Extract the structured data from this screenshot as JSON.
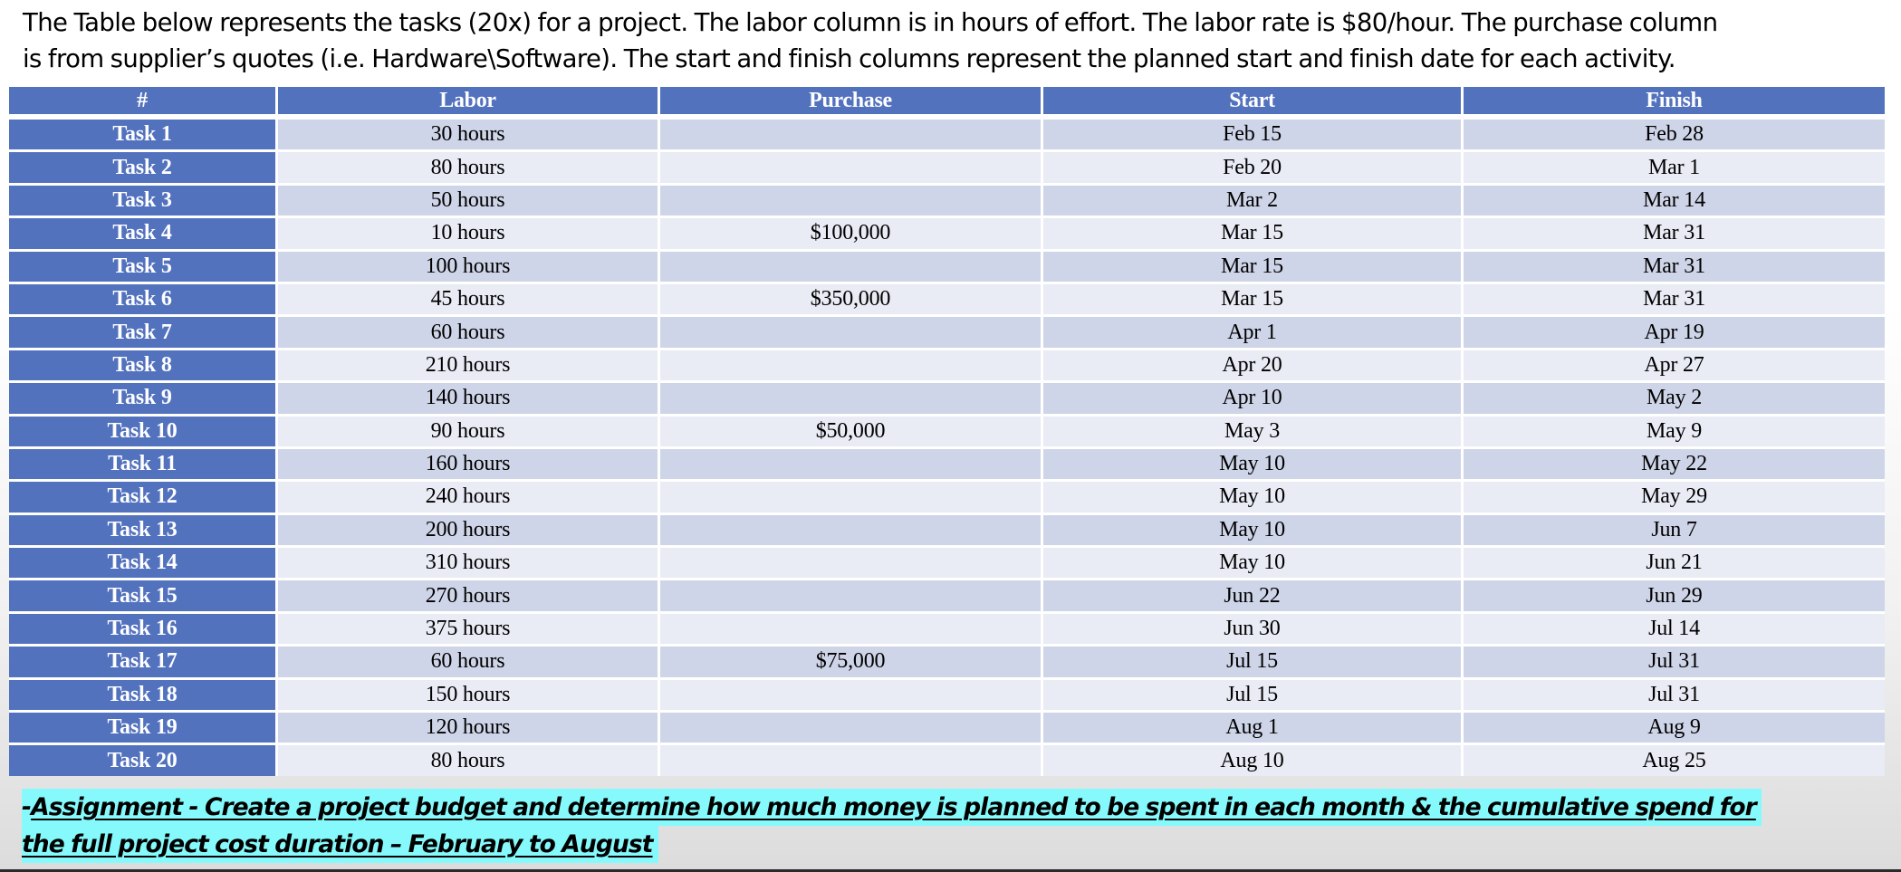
{
  "intro": {
    "line1": "The Table below represents the tasks (20x) for a project. The labor column is in hours of effort. The labor rate is $80/hour. The purchase column",
    "line2": "is from supplier’s quotes (i.e. Hardware\\Software). The start and finish columns represent the planned start and finish date for each activity."
  },
  "table": {
    "headers": [
      "#",
      "Labor",
      "Purchase",
      "Start",
      "Finish"
    ],
    "rows": [
      {
        "task": "Task 1",
        "labor": "30 hours",
        "purchase": "",
        "start": "Feb 15",
        "finish": "Feb 28"
      },
      {
        "task": "Task 2",
        "labor": "80 hours",
        "purchase": "",
        "start": "Feb 20",
        "finish": "Mar 1"
      },
      {
        "task": "Task 3",
        "labor": "50 hours",
        "purchase": "",
        "start": "Mar 2",
        "finish": "Mar 14"
      },
      {
        "task": "Task 4",
        "labor": "10 hours",
        "purchase": "$100,000",
        "start": "Mar 15",
        "finish": "Mar 31"
      },
      {
        "task": "Task 5",
        "labor": "100 hours",
        "purchase": "",
        "start": "Mar 15",
        "finish": "Mar 31"
      },
      {
        "task": "Task 6",
        "labor": "45 hours",
        "purchase": "$350,000",
        "start": "Mar 15",
        "finish": "Mar 31"
      },
      {
        "task": "Task 7",
        "labor": "60 hours",
        "purchase": "",
        "start": "Apr 1",
        "finish": "Apr 19"
      },
      {
        "task": "Task 8",
        "labor": "210 hours",
        "purchase": "",
        "start": "Apr 20",
        "finish": "Apr 27"
      },
      {
        "task": "Task 9",
        "labor": "140 hours",
        "purchase": "",
        "start": "Apr 10",
        "finish": "May 2"
      },
      {
        "task": "Task 10",
        "labor": "90 hours",
        "purchase": "$50,000",
        "start": "May 3",
        "finish": "May 9"
      },
      {
        "task": "Task 11",
        "labor": "160 hours",
        "purchase": "",
        "start": "May 10",
        "finish": "May 22"
      },
      {
        "task": "Task 12",
        "labor": "240 hours",
        "purchase": "",
        "start": "May 10",
        "finish": "May 29"
      },
      {
        "task": "Task 13",
        "labor": "200 hours",
        "purchase": "",
        "start": "May 10",
        "finish": "Jun 7"
      },
      {
        "task": "Task 14",
        "labor": "310 hours",
        "purchase": "",
        "start": "May 10",
        "finish": "Jun 21"
      },
      {
        "task": "Task 15",
        "labor": "270 hours",
        "purchase": "",
        "start": "Jun 22",
        "finish": "Jun 29"
      },
      {
        "task": "Task 16",
        "labor": "375 hours",
        "purchase": "",
        "start": "Jun 30",
        "finish": "Jul 14"
      },
      {
        "task": "Task 17",
        "labor": "60 hours",
        "purchase": "$75,000",
        "start": "Jul 15",
        "finish": "Jul 31"
      },
      {
        "task": "Task 18",
        "labor": "150 hours",
        "purchase": "",
        "start": "Jul 15",
        "finish": "Jul 31"
      },
      {
        "task": "Task 19",
        "labor": "120 hours",
        "purchase": "",
        "start": "Aug 1",
        "finish": "Aug 9"
      },
      {
        "task": "Task 20",
        "labor": "80 hours",
        "purchase": "",
        "start": "Aug 10",
        "finish": "Aug 25"
      }
    ]
  },
  "assignment": {
    "dash": "-",
    "line1": "Assignment - Create a project budget and determine how much money is planned to be spent in each month & the cumulative spend for",
    "line2": "the full project cost duration – February to August"
  },
  "colors": {
    "header_bg": "#5372be",
    "stripe_dark": "#cfd5e8",
    "stripe_light": "#e9ebf5",
    "highlight": "#85f9fb"
  }
}
